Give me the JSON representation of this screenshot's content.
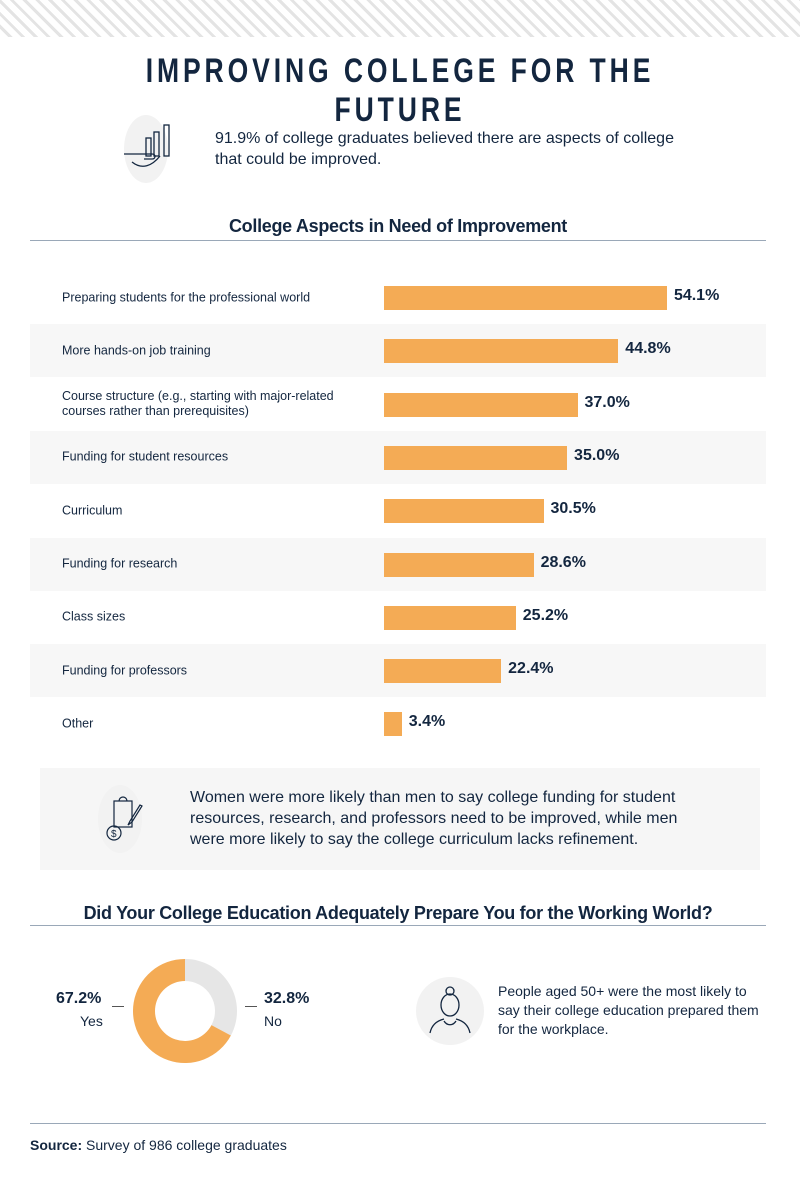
{
  "title": "IMPROVING COLLEGE FOR THE FUTURE",
  "intro": {
    "icon": "hand-bar-chart-icon",
    "text": "91.9% of college graduates believed there are aspects of college that could be improved."
  },
  "chart_data": [
    {
      "type": "bar",
      "orientation": "horizontal",
      "title": "College Aspects in Need of Improvement",
      "categories": [
        "Preparing students for the professional world",
        "More hands-on job training",
        "Course structure (e.g., starting with major-related courses rather than prerequisites)",
        "Funding for student resources",
        "Curriculum",
        "Funding for research",
        "Class sizes",
        "Funding for professors",
        "Other"
      ],
      "values": [
        54.1,
        44.8,
        37.0,
        35.0,
        30.5,
        28.6,
        25.2,
        22.4,
        3.4
      ],
      "labels": [
        "54.1%",
        "44.8%",
        "37.0%",
        "35.0%",
        "30.5%",
        "28.6%",
        "25.2%",
        "22.4%",
        "3.4%"
      ],
      "color": "#f4ab55"
    },
    {
      "type": "pie",
      "variant": "donut",
      "title": "Did Your College Education Adequately Prepare You for the Working World?",
      "slices": [
        {
          "name": "Yes",
          "value": 67.2,
          "label": "67.2%",
          "color": "#f4ab55"
        },
        {
          "name": "No",
          "value": 32.8,
          "label": "32.8%",
          "color": "#e6e6e6"
        }
      ]
    }
  ],
  "note": {
    "icon": "clipboard-dollar-pencil-icon",
    "text": "Women were more likely than men to say college funding for student resources, research, and professors need to be improved, while men were more likely to say the college curriculum lacks refinement."
  },
  "age_note": {
    "icon": "older-woman-icon",
    "text": "People aged 50+ were the most likely to say their college education prepared them for the workplace."
  },
  "source": {
    "label": "Source:",
    "text": " Survey of 986 college graduates"
  }
}
